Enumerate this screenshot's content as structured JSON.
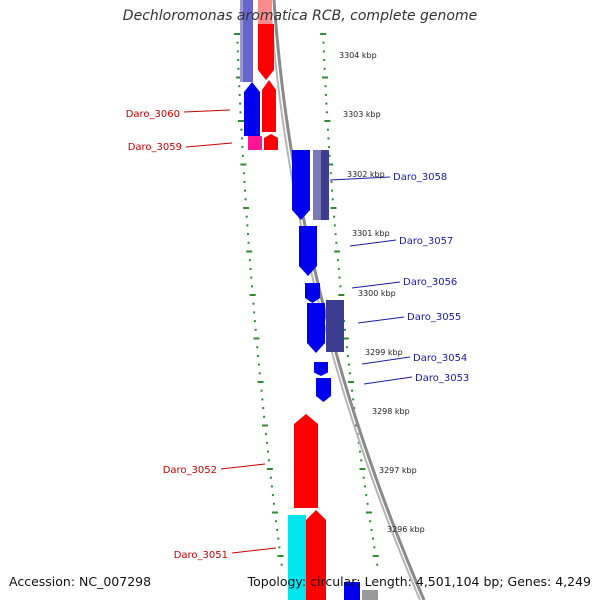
{
  "title": "Dechloromonas aromatica RCB, complete genome",
  "footer": {
    "accession": "Accession: NC_007298",
    "topology": "Topology: circular; Length: 4,501,104 bp; Genes: 4,249"
  },
  "colors": {
    "backbone": "#8a8a8a",
    "tick": "#2e8b2e",
    "label_left": "#cc0000",
    "label_right": "#1a1aaa",
    "ruler_text": "#222222",
    "red_gene": "#ff0000",
    "blue_gene": "#0000ee",
    "navy_gene": "#3d3d8f",
    "magenta_gene": "#ff1493",
    "cyan_gene": "#00e5ee"
  },
  "ruler_labels": [
    "3304 kbp",
    "3303 kbp",
    "3302 kbp",
    "3301 kbp",
    "3300 kbp",
    "3299 kbp",
    "3298 kbp",
    "3297 kbp",
    "3296 kbp"
  ],
  "gene_labels_left": [
    "Daro_3060",
    "Daro_3059",
    "Daro_3052",
    "Daro_3051"
  ],
  "gene_labels_right": [
    "Daro_3058",
    "Daro_3057",
    "Daro_3056",
    "Daro_3055",
    "Daro_3054",
    "Daro_3053"
  ],
  "feature_track_colors": [
    "red_gene",
    "blue_gene",
    "navy_gene",
    "magenta_gene",
    "cyan_gene"
  ]
}
